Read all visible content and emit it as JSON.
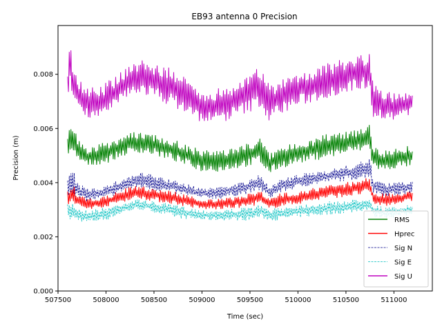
{
  "chart_data": {
    "type": "line",
    "title": "EB93 antenna 0 Precision",
    "xlabel": "Time (sec)",
    "ylabel": "Precision (m)",
    "xlim": [
      507500,
      511400
    ],
    "ylim": [
      0,
      0.0098
    ],
    "xticks": [
      507500,
      508000,
      508500,
      509000,
      509500,
      510000,
      510500,
      511000
    ],
    "xtick_labels": [
      "507500",
      "508000",
      "508500",
      "509000",
      "509500",
      "510000",
      "510500",
      "511000"
    ],
    "yticks": [
      0.0,
      0.002,
      0.004,
      0.006,
      0.008
    ],
    "ytick_labels": [
      "0.000",
      "0.002",
      "0.004",
      "0.006",
      "0.008"
    ],
    "legend_position": "lower-right",
    "series": [
      {
        "name": "RMS",
        "color": "#008000",
        "style": "solid",
        "x": [
          507600,
          507650,
          507700,
          507800,
          508000,
          508200,
          508350,
          508500,
          508700,
          509000,
          509200,
          509500,
          509600,
          509700,
          509800,
          510000,
          510300,
          510600,
          510750,
          510780,
          510900,
          511000,
          511200
        ],
        "y_low": [
          0.0048,
          0.0049,
          0.0048,
          0.0046,
          0.0047,
          0.005,
          0.0051,
          0.005,
          0.0048,
          0.0044,
          0.0044,
          0.0046,
          0.0047,
          0.0043,
          0.0045,
          0.0047,
          0.0049,
          0.0051,
          0.0052,
          0.0045,
          0.0044,
          0.0045,
          0.0046
        ],
        "y_high": [
          0.0058,
          0.0063,
          0.0057,
          0.0053,
          0.0055,
          0.0058,
          0.0059,
          0.0058,
          0.0056,
          0.0052,
          0.0052,
          0.0055,
          0.0057,
          0.0051,
          0.0053,
          0.0055,
          0.0058,
          0.006,
          0.0062,
          0.0054,
          0.0052,
          0.0053,
          0.0054
        ]
      },
      {
        "name": "Hprec",
        "color": "#ff0000",
        "style": "solid",
        "x": [
          507600,
          507650,
          507700,
          507800,
          508000,
          508200,
          508350,
          508500,
          508700,
          509000,
          509200,
          509500,
          509600,
          509700,
          509800,
          510000,
          510300,
          510600,
          510750,
          510780,
          510900,
          511000,
          511200
        ],
        "y_low": [
          0.0031,
          0.0032,
          0.0031,
          0.003,
          0.0031,
          0.0033,
          0.0034,
          0.0033,
          0.0032,
          0.003,
          0.003,
          0.0031,
          0.0032,
          0.003,
          0.0031,
          0.0032,
          0.0034,
          0.0035,
          0.0036,
          0.0032,
          0.0031,
          0.0032,
          0.0033
        ],
        "y_high": [
          0.0037,
          0.004,
          0.0036,
          0.0034,
          0.0035,
          0.0038,
          0.0039,
          0.0038,
          0.0037,
          0.0034,
          0.0034,
          0.0036,
          0.0038,
          0.0034,
          0.0036,
          0.0037,
          0.0039,
          0.0041,
          0.0042,
          0.0037,
          0.0036,
          0.0036,
          0.0037
        ]
      },
      {
        "name": "Sig N",
        "color": "#00008b",
        "style": "dashed",
        "x": [
          507600,
          507650,
          507700,
          507800,
          508000,
          508200,
          508350,
          508500,
          508700,
          509000,
          509200,
          509500,
          509600,
          509700,
          509800,
          510000,
          510300,
          510600,
          510750,
          510780,
          510900,
          511000,
          511200
        ],
        "y_low": [
          0.0035,
          0.0036,
          0.0034,
          0.0033,
          0.0034,
          0.0037,
          0.0038,
          0.0037,
          0.0036,
          0.0034,
          0.0034,
          0.0036,
          0.0037,
          0.0034,
          0.0036,
          0.0038,
          0.004,
          0.0041,
          0.0042,
          0.0036,
          0.0035,
          0.0035,
          0.0036
        ],
        "y_high": [
          0.0041,
          0.0046,
          0.004,
          0.0038,
          0.0039,
          0.0042,
          0.0044,
          0.0043,
          0.0041,
          0.0038,
          0.0039,
          0.0041,
          0.0043,
          0.0039,
          0.0041,
          0.0043,
          0.0045,
          0.0047,
          0.0049,
          0.0042,
          0.004,
          0.004,
          0.0041
        ]
      },
      {
        "name": "Sig E",
        "color": "#00bfbf",
        "style": "dashed",
        "x": [
          507600,
          507650,
          507700,
          507800,
          508000,
          508200,
          508350,
          508500,
          508700,
          509000,
          509200,
          509500,
          509600,
          509700,
          509800,
          510000,
          510300,
          510600,
          510750,
          510780,
          510900,
          511000,
          511200
        ],
        "y_low": [
          0.0026,
          0.0026,
          0.0026,
          0.0025,
          0.0026,
          0.0029,
          0.003,
          0.0029,
          0.0027,
          0.0026,
          0.0026,
          0.0026,
          0.0027,
          0.0026,
          0.0026,
          0.0027,
          0.0028,
          0.0029,
          0.003,
          0.0027,
          0.0027,
          0.0027,
          0.0028
        ],
        "y_high": [
          0.0032,
          0.0033,
          0.0031,
          0.003,
          0.0031,
          0.0033,
          0.0034,
          0.0033,
          0.0032,
          0.003,
          0.003,
          0.0031,
          0.0032,
          0.003,
          0.0031,
          0.0032,
          0.0033,
          0.0034,
          0.0035,
          0.0032,
          0.0031,
          0.0031,
          0.0032
        ]
      },
      {
        "name": "Sig U",
        "color": "#bf00bf",
        "style": "solid",
        "x": [
          507600,
          507630,
          507650,
          507700,
          507800,
          508000,
          508200,
          508350,
          508500,
          508700,
          509000,
          509200,
          509500,
          509600,
          509700,
          509800,
          510000,
          510300,
          510600,
          510750,
          510780,
          510900,
          511000,
          511200
        ],
        "y_low": [
          0.0072,
          0.0075,
          0.007,
          0.0068,
          0.0064,
          0.0064,
          0.0071,
          0.0073,
          0.0071,
          0.0068,
          0.0062,
          0.0062,
          0.0066,
          0.0068,
          0.0062,
          0.0065,
          0.0068,
          0.0071,
          0.0074,
          0.0075,
          0.0064,
          0.0063,
          0.0063,
          0.0065
        ],
        "y_high": [
          0.0082,
          0.0098,
          0.0086,
          0.0079,
          0.0075,
          0.0077,
          0.0082,
          0.0086,
          0.0084,
          0.0082,
          0.0074,
          0.0075,
          0.008,
          0.0084,
          0.0076,
          0.0078,
          0.0081,
          0.0084,
          0.0087,
          0.0088,
          0.0077,
          0.0074,
          0.0073,
          0.0074
        ]
      }
    ]
  }
}
